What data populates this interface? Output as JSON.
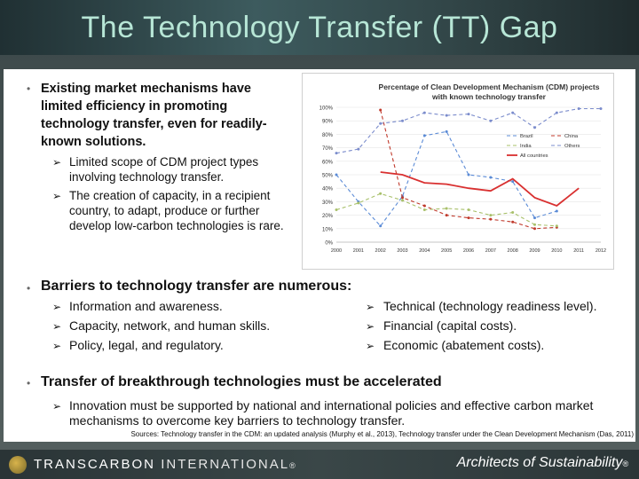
{
  "slide": {
    "title": "The Technology Transfer (TT) Gap",
    "bullets": [
      {
        "text": "Existing market mechanisms have limited efficiency in promoting technology transfer, even for readily-known solutions.",
        "subs": [
          "Limited scope of CDM project types involving technology transfer.",
          "The creation of capacity, in a recipient country, to adapt, produce or further develop low-carbon technologies is rare."
        ]
      },
      {
        "text": "Barriers to technology transfer are numerous:",
        "subs_left": [
          "Information and awareness.",
          "Capacity, network, and human skills.",
          "Policy, legal, and regulatory."
        ],
        "subs_right": [
          "Technical (technology readiness level).",
          "Financial (capital costs).",
          "Economic (abatement costs)."
        ]
      },
      {
        "text": "Transfer of breakthrough technologies must be accelerated",
        "subs": [
          "Innovation must be supported by national and international policies and effective carbon market mechanisms to overcome key barriers to technology transfer."
        ]
      }
    ],
    "sources": "Sources: Technology transfer in the CDM: an updated analysis (Murphy et al., 2013), Technology transfer under the Clean Development Mechanism (Das, 2011)",
    "footer": {
      "brand_left": "TRANSCARBON",
      "brand_right": "INTERNATIONAL",
      "brand_mark": "®",
      "tagline": "Architects of Sustainability",
      "tagline_mark": "®"
    }
  },
  "chart_data": {
    "type": "line",
    "title": "Percentage of Clean Development Mechanism (CDM) projects with known technology transfer",
    "x": [
      "2000",
      "2001",
      "2002",
      "2003",
      "2004",
      "2005",
      "2006",
      "2007",
      "2008",
      "2009",
      "2010",
      "2011",
      "2012"
    ],
    "ylim": [
      0,
      100
    ],
    "yticks": [
      "0%",
      "10%",
      "20%",
      "30%",
      "40%",
      "50%",
      "60%",
      "70%",
      "80%",
      "90%",
      "100%"
    ],
    "legend_position": "right",
    "series": [
      {
        "name": "Brazil",
        "color": "#5b8bd6",
        "dash": "4,3",
        "values": [
          50,
          30,
          12,
          34,
          79,
          82,
          50,
          48,
          45,
          18,
          23,
          null,
          null
        ]
      },
      {
        "name": "China",
        "color": "#c0392b",
        "dash": "4,3",
        "values": [
          null,
          null,
          98,
          33,
          27,
          20,
          18,
          17,
          15,
          10,
          11,
          null,
          null
        ]
      },
      {
        "name": "India",
        "color": "#a8c06a",
        "dash": "4,3",
        "values": [
          24,
          29,
          36,
          31,
          24,
          25,
          24,
          20,
          22,
          13,
          12,
          null,
          null
        ]
      },
      {
        "name": "Others",
        "color": "#7b8ccc",
        "dash": "4,3",
        "values": [
          66,
          69,
          88,
          90,
          96,
          94,
          95,
          90,
          96,
          85,
          96,
          99,
          99
        ]
      },
      {
        "name": "All countries",
        "color": "#d93030",
        "dash": "",
        "values": [
          null,
          null,
          52,
          50,
          44,
          43,
          40,
          38,
          47,
          33,
          27,
          40,
          null
        ]
      }
    ]
  }
}
